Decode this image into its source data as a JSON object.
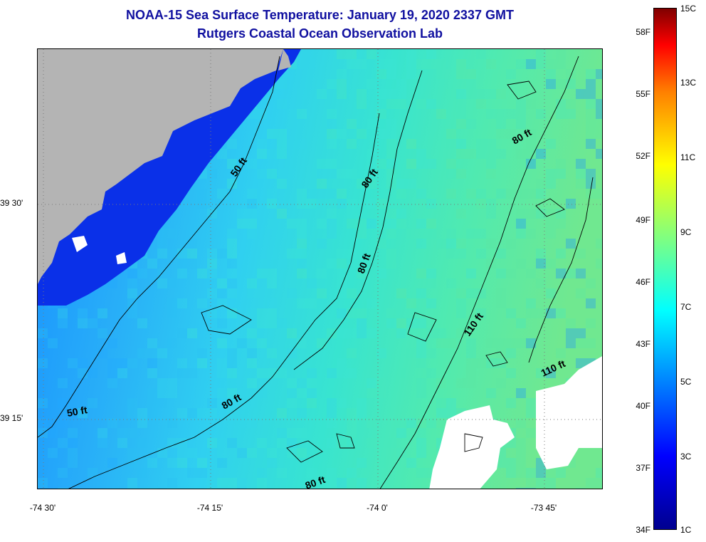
{
  "title": {
    "line1": "NOAA-15 Sea Surface Temperature:  January 19, 2020 2337 GMT",
    "line2": "Rutgers Coastal Ocean Observation Lab"
  },
  "map": {
    "latitude_labels": [
      "39 30'",
      "39 15'"
    ],
    "longitude_labels": [
      "-74 30'",
      "-74 15'",
      "-74 0'",
      "-73 45'"
    ],
    "depth_contour_labels": [
      "50 ft",
      "50 ft",
      "80 ft",
      "80 ft",
      "80 ft",
      "80 ft",
      "80 ft",
      "110 ft",
      "110 ft"
    ],
    "colors": {
      "land": "#b4b4b4",
      "cloud_nodata": "#ffffff",
      "coastal_cold_water": "#0a20e0",
      "nearshore_water": "#20a0ff",
      "offshore_water": "#40e0c0"
    }
  },
  "colorbar": {
    "fahrenheit_labels": [
      "58F",
      "55F",
      "52F",
      "49F",
      "46F",
      "43F",
      "40F",
      "37F",
      "34F"
    ],
    "celsius_labels": [
      "15C",
      "13C",
      "11C",
      "9C",
      "7C",
      "5C",
      "3C",
      "1C"
    ],
    "colormap": "jet"
  }
}
